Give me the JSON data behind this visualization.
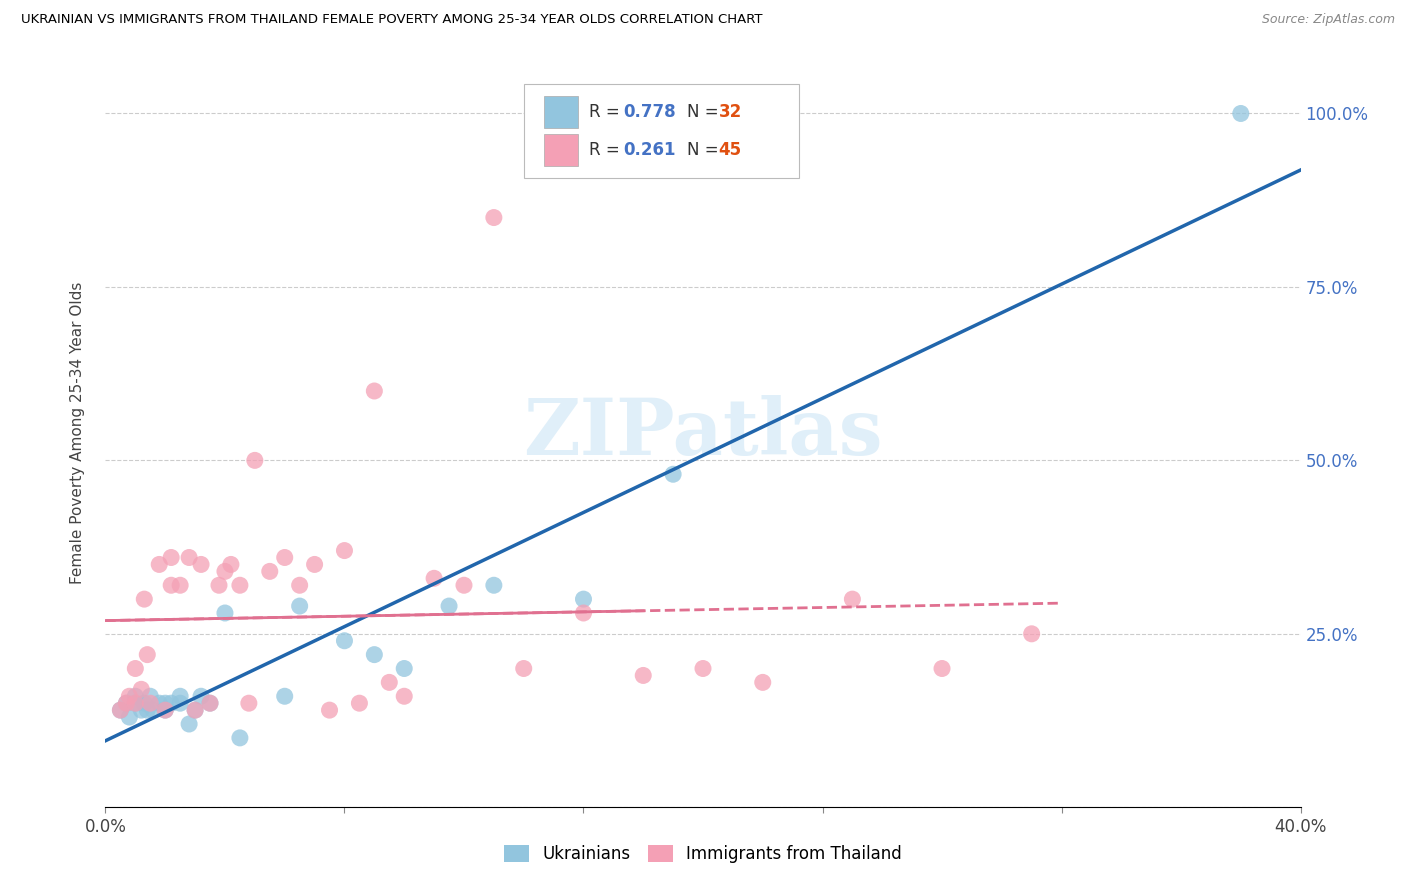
{
  "title": "UKRAINIAN VS IMMIGRANTS FROM THAILAND FEMALE POVERTY AMONG 25-34 YEAR OLDS CORRELATION CHART",
  "source": "Source: ZipAtlas.com",
  "ylabel": "Female Poverty Among 25-34 Year Olds",
  "y_ticks": [
    0.0,
    0.25,
    0.5,
    0.75,
    1.0
  ],
  "y_tick_labels": [
    "",
    "25.0%",
    "50.0%",
    "75.0%",
    "100.0%"
  ],
  "x_ticks": [
    0.0,
    0.08,
    0.16,
    0.24,
    0.32,
    0.4
  ],
  "x_tick_labels": [
    "0.0%",
    "",
    "",
    "",
    "",
    "40.0%"
  ],
  "watermark": "ZIPatlas",
  "legend_r1": "R = 0.778",
  "legend_n1": "N = 32",
  "legend_r2": "R = 0.261",
  "legend_n2": "N = 45",
  "legend_label1": "Ukrainians",
  "legend_label2": "Immigrants from Thailand",
  "color_blue": "#92c5de",
  "color_pink": "#f4a0b5",
  "color_blue_line": "#2166ac",
  "color_pink_line": "#e07090",
  "ukrainians_x": [
    0.005,
    0.007,
    0.008,
    0.01,
    0.01,
    0.012,
    0.013,
    0.014,
    0.015,
    0.016,
    0.018,
    0.02,
    0.02,
    0.022,
    0.025,
    0.025,
    0.028,
    0.03,
    0.032,
    0.035,
    0.04,
    0.045,
    0.06,
    0.065,
    0.08,
    0.09,
    0.1,
    0.115,
    0.13,
    0.16,
    0.19,
    0.38
  ],
  "ukrainians_y": [
    0.14,
    0.15,
    0.13,
    0.15,
    0.16,
    0.14,
    0.15,
    0.14,
    0.16,
    0.14,
    0.15,
    0.15,
    0.14,
    0.15,
    0.15,
    0.16,
    0.12,
    0.14,
    0.16,
    0.15,
    0.28,
    0.1,
    0.16,
    0.29,
    0.24,
    0.22,
    0.2,
    0.29,
    0.32,
    0.3,
    0.48,
    1.0
  ],
  "thailand_x": [
    0.005,
    0.007,
    0.008,
    0.01,
    0.01,
    0.012,
    0.013,
    0.014,
    0.015,
    0.018,
    0.02,
    0.022,
    0.022,
    0.025,
    0.028,
    0.03,
    0.032,
    0.035,
    0.038,
    0.04,
    0.042,
    0.045,
    0.048,
    0.05,
    0.055,
    0.06,
    0.065,
    0.07,
    0.075,
    0.08,
    0.085,
    0.09,
    0.095,
    0.1,
    0.11,
    0.12,
    0.13,
    0.14,
    0.16,
    0.18,
    0.2,
    0.22,
    0.25,
    0.28,
    0.31
  ],
  "thailand_y": [
    0.14,
    0.15,
    0.16,
    0.15,
    0.2,
    0.17,
    0.3,
    0.22,
    0.15,
    0.35,
    0.14,
    0.32,
    0.36,
    0.32,
    0.36,
    0.14,
    0.35,
    0.15,
    0.32,
    0.34,
    0.35,
    0.32,
    0.15,
    0.5,
    0.34,
    0.36,
    0.32,
    0.35,
    0.14,
    0.37,
    0.15,
    0.6,
    0.18,
    0.16,
    0.33,
    0.32,
    0.85,
    0.2,
    0.28,
    0.19,
    0.2,
    0.18,
    0.3,
    0.2,
    0.25
  ]
}
